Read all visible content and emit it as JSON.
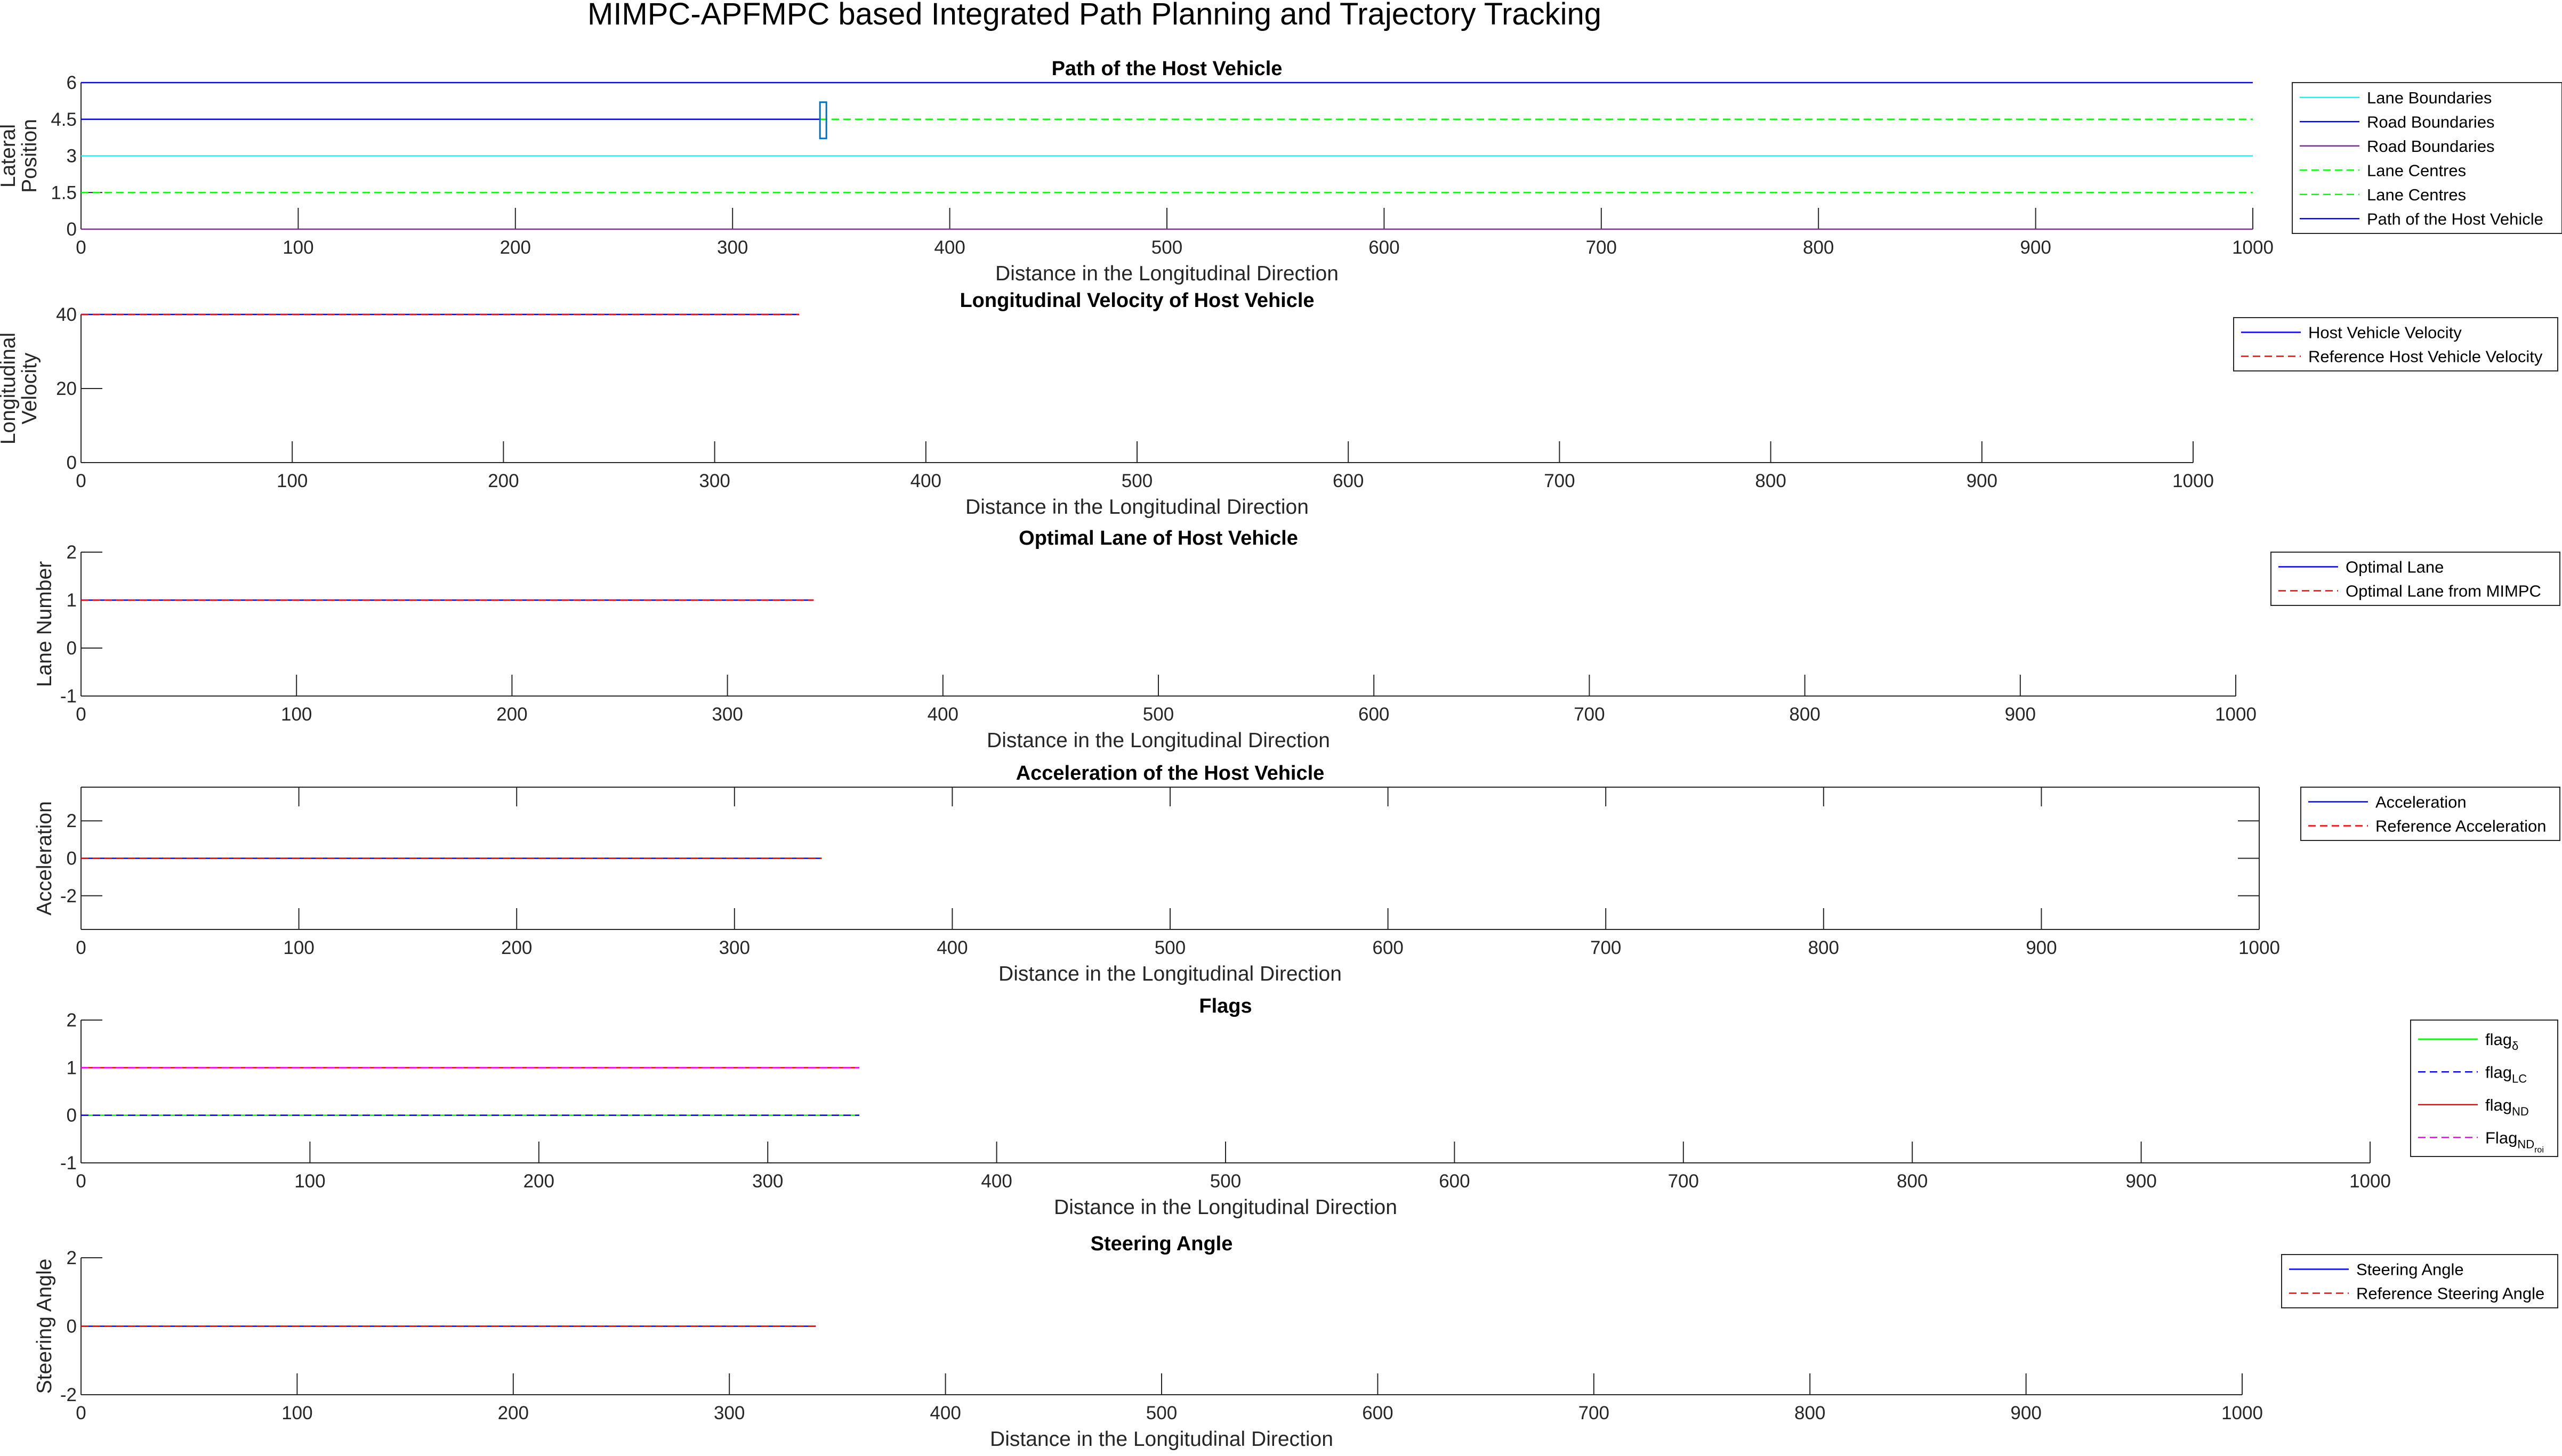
{
  "figure": {
    "title": "MIMPC-APFMPC based Integrated Path Planning and Trajectory Tracking"
  },
  "colors": {
    "blue": "#0000ff",
    "red": "#ff0000",
    "green": "#00ff00",
    "cyan": "#00ffff",
    "purple": "#7e2f8e",
    "magenta": "#ff00ff",
    "gray": "#808080",
    "axis": "#262626"
  },
  "chart_data": [
    {
      "type": "line",
      "title": "Path of the Host Vehicle",
      "xlabel": "Distance in the Longitudinal Direction",
      "ylabel": [
        "Lateral",
        "Position"
      ],
      "xlim": [
        0,
        1000
      ],
      "ylim": [
        0,
        6
      ],
      "xticks": [
        "0",
        "100",
        "200",
        "300",
        "400",
        "500",
        "600",
        "700",
        "800",
        "900",
        "1000"
      ],
      "yticks": [
        "0",
        "1.5",
        "3",
        "4.5",
        "6"
      ],
      "grid": false,
      "legend_position": "right",
      "series": [
        {
          "name": "Lane Boundaries",
          "color": "#00ffff",
          "dash": "solid",
          "x": [
            0,
            1000
          ],
          "y": [
            3,
            3
          ]
        },
        {
          "name": "Road Boundaries",
          "color": "#0000ff",
          "dash": "solid",
          "x": [
            0,
            1000
          ],
          "y": [
            6,
            6
          ]
        },
        {
          "name": "Road Boundaries",
          "color": "#7e2f8e",
          "dash": "solid",
          "x": [
            0,
            1000
          ],
          "y": [
            0,
            0
          ]
        },
        {
          "name": "Lane Centres",
          "color": "#00ff00",
          "dash": "dashed",
          "x": [
            0,
            1000
          ],
          "y": [
            4.5,
            4.5
          ]
        },
        {
          "name": "Lane Centres",
          "color": "#00ff00",
          "dash": "dashed",
          "x": [
            0,
            1000
          ],
          "y": [
            1.5,
            1.5
          ]
        },
        {
          "name": "Path of the Host Vehicle",
          "color": "#0000ff",
          "dash": "solid",
          "x": [
            0,
            340
          ],
          "y": [
            4.5,
            4.5
          ]
        }
      ],
      "vehicle_marker": {
        "x": 340,
        "y": 4.5
      }
    },
    {
      "type": "line",
      "title": "Longitudinal Velocity of Host Vehicle",
      "xlabel": "Distance in the Longitudinal Direction",
      "ylabel": [
        "Longitudinal",
        "Velocity"
      ],
      "xlim": [
        0,
        1000
      ],
      "ylim": [
        0,
        40
      ],
      "xticks": [
        "0",
        "100",
        "200",
        "300",
        "400",
        "500",
        "600",
        "700",
        "800",
        "900",
        "1000"
      ],
      "yticks": [
        "0",
        "20",
        "40"
      ],
      "grid": false,
      "legend_position": "right",
      "series": [
        {
          "name": "Host Vehicle Velocity",
          "color": "#0000ff",
          "dash": "solid",
          "x": [
            0,
            340
          ],
          "y": [
            40,
            40
          ]
        },
        {
          "name": "Reference Host Vehicle Velocity",
          "color": "#ff0000",
          "dash": "dashed",
          "x": [
            0,
            340
          ],
          "y": [
            40,
            40
          ]
        }
      ]
    },
    {
      "type": "line",
      "title": "Optimal Lane of Host Vehicle",
      "xlabel": "Distance in the Longitudinal Direction",
      "ylabel": [
        "Lane Number"
      ],
      "xlim": [
        0,
        1000
      ],
      "ylim": [
        -1,
        2
      ],
      "xticks": [
        "0",
        "100",
        "200",
        "300",
        "400",
        "500",
        "600",
        "700",
        "800",
        "900",
        "1000"
      ],
      "yticks": [
        "-1",
        "0",
        "1",
        "2"
      ],
      "grid": false,
      "legend_position": "right",
      "series": [
        {
          "name": "Optimal Lane",
          "color": "#0000ff",
          "dash": "solid",
          "x": [
            0,
            340
          ],
          "y": [
            1,
            1
          ]
        },
        {
          "name": "Optimal Lane from MIMPC",
          "color": "#ff0000",
          "dash": "dashed",
          "x": [
            0,
            340
          ],
          "y": [
            1,
            1
          ]
        }
      ]
    },
    {
      "type": "line",
      "title": "Acceleration of the Host Vehicle",
      "xlabel": "Distance in the Longitudinal Direction",
      "ylabel": [
        "Acceleration"
      ],
      "xlim": [
        0,
        1000
      ],
      "ylim": [
        -3.8,
        3.8
      ],
      "xticks": [
        "0",
        "100",
        "200",
        "300",
        "400",
        "500",
        "600",
        "700",
        "800",
        "900",
        "1000"
      ],
      "yticks": [
        "-2",
        "0",
        "2"
      ],
      "grid": false,
      "legend_position": "right",
      "series": [
        {
          "name": "Acceleration",
          "color": "#0000ff",
          "dash": "solid",
          "x": [
            0,
            340
          ],
          "y": [
            0,
            0
          ]
        },
        {
          "name": "Reference Acceleration",
          "color": "#ff0000",
          "dash": "dashed",
          "x": [
            0,
            340
          ],
          "y": [
            0,
            0
          ]
        }
      ]
    },
    {
      "type": "line",
      "title": "Flags",
      "xlabel": "Distance in the Longitudinal Direction",
      "ylabel": [],
      "xlim": [
        0,
        1000
      ],
      "ylim": [
        -1,
        2
      ],
      "xticks": [
        "0",
        "100",
        "200",
        "300",
        "400",
        "500",
        "600",
        "700",
        "800",
        "900",
        "1000"
      ],
      "yticks": [
        "-1",
        "0",
        "1",
        "2"
      ],
      "grid": false,
      "legend_position": "right",
      "series": [
        {
          "name": "flag",
          "sub": "δ",
          "subsub": "",
          "color": "#00ff00",
          "dash": "solid",
          "x": [
            0,
            340
          ],
          "y": [
            0,
            0
          ]
        },
        {
          "name": "flag",
          "sub": "LC",
          "subsub": "",
          "color": "#0000ff",
          "dash": "dashed",
          "x": [
            0,
            340
          ],
          "y": [
            0,
            0
          ]
        },
        {
          "name": "flag",
          "sub": "ND",
          "subsub": "",
          "color": "#ff0000",
          "dash": "solid",
          "x": [
            0,
            340
          ],
          "y": [
            1,
            1
          ]
        },
        {
          "name": "Flag",
          "sub": "ND",
          "subsub": "roi",
          "color": "#ff00ff",
          "dash": "dashed",
          "x": [
            0,
            340
          ],
          "y": [
            1,
            1
          ]
        }
      ]
    },
    {
      "type": "line",
      "title": "Steering Angle",
      "xlabel": "Distance in the Longitudinal Direction",
      "ylabel": [
        "Steering Angle"
      ],
      "xlim": [
        0,
        1000
      ],
      "ylim": [
        -2,
        2
      ],
      "xticks": [
        "0",
        "100",
        "200",
        "300",
        "400",
        "500",
        "600",
        "700",
        "800",
        "900",
        "1000"
      ],
      "yticks": [
        "-2",
        "0",
        "2"
      ],
      "grid": false,
      "legend_position": "right",
      "series": [
        {
          "name": "Steering Angle",
          "color": "#0000ff",
          "dash": "solid",
          "x": [
            0,
            340
          ],
          "y": [
            0,
            0
          ]
        },
        {
          "name": "Reference Steering Angle",
          "color": "#ff0000",
          "dash": "dashed",
          "x": [
            0,
            340
          ],
          "y": [
            0,
            0
          ]
        }
      ]
    }
  ]
}
